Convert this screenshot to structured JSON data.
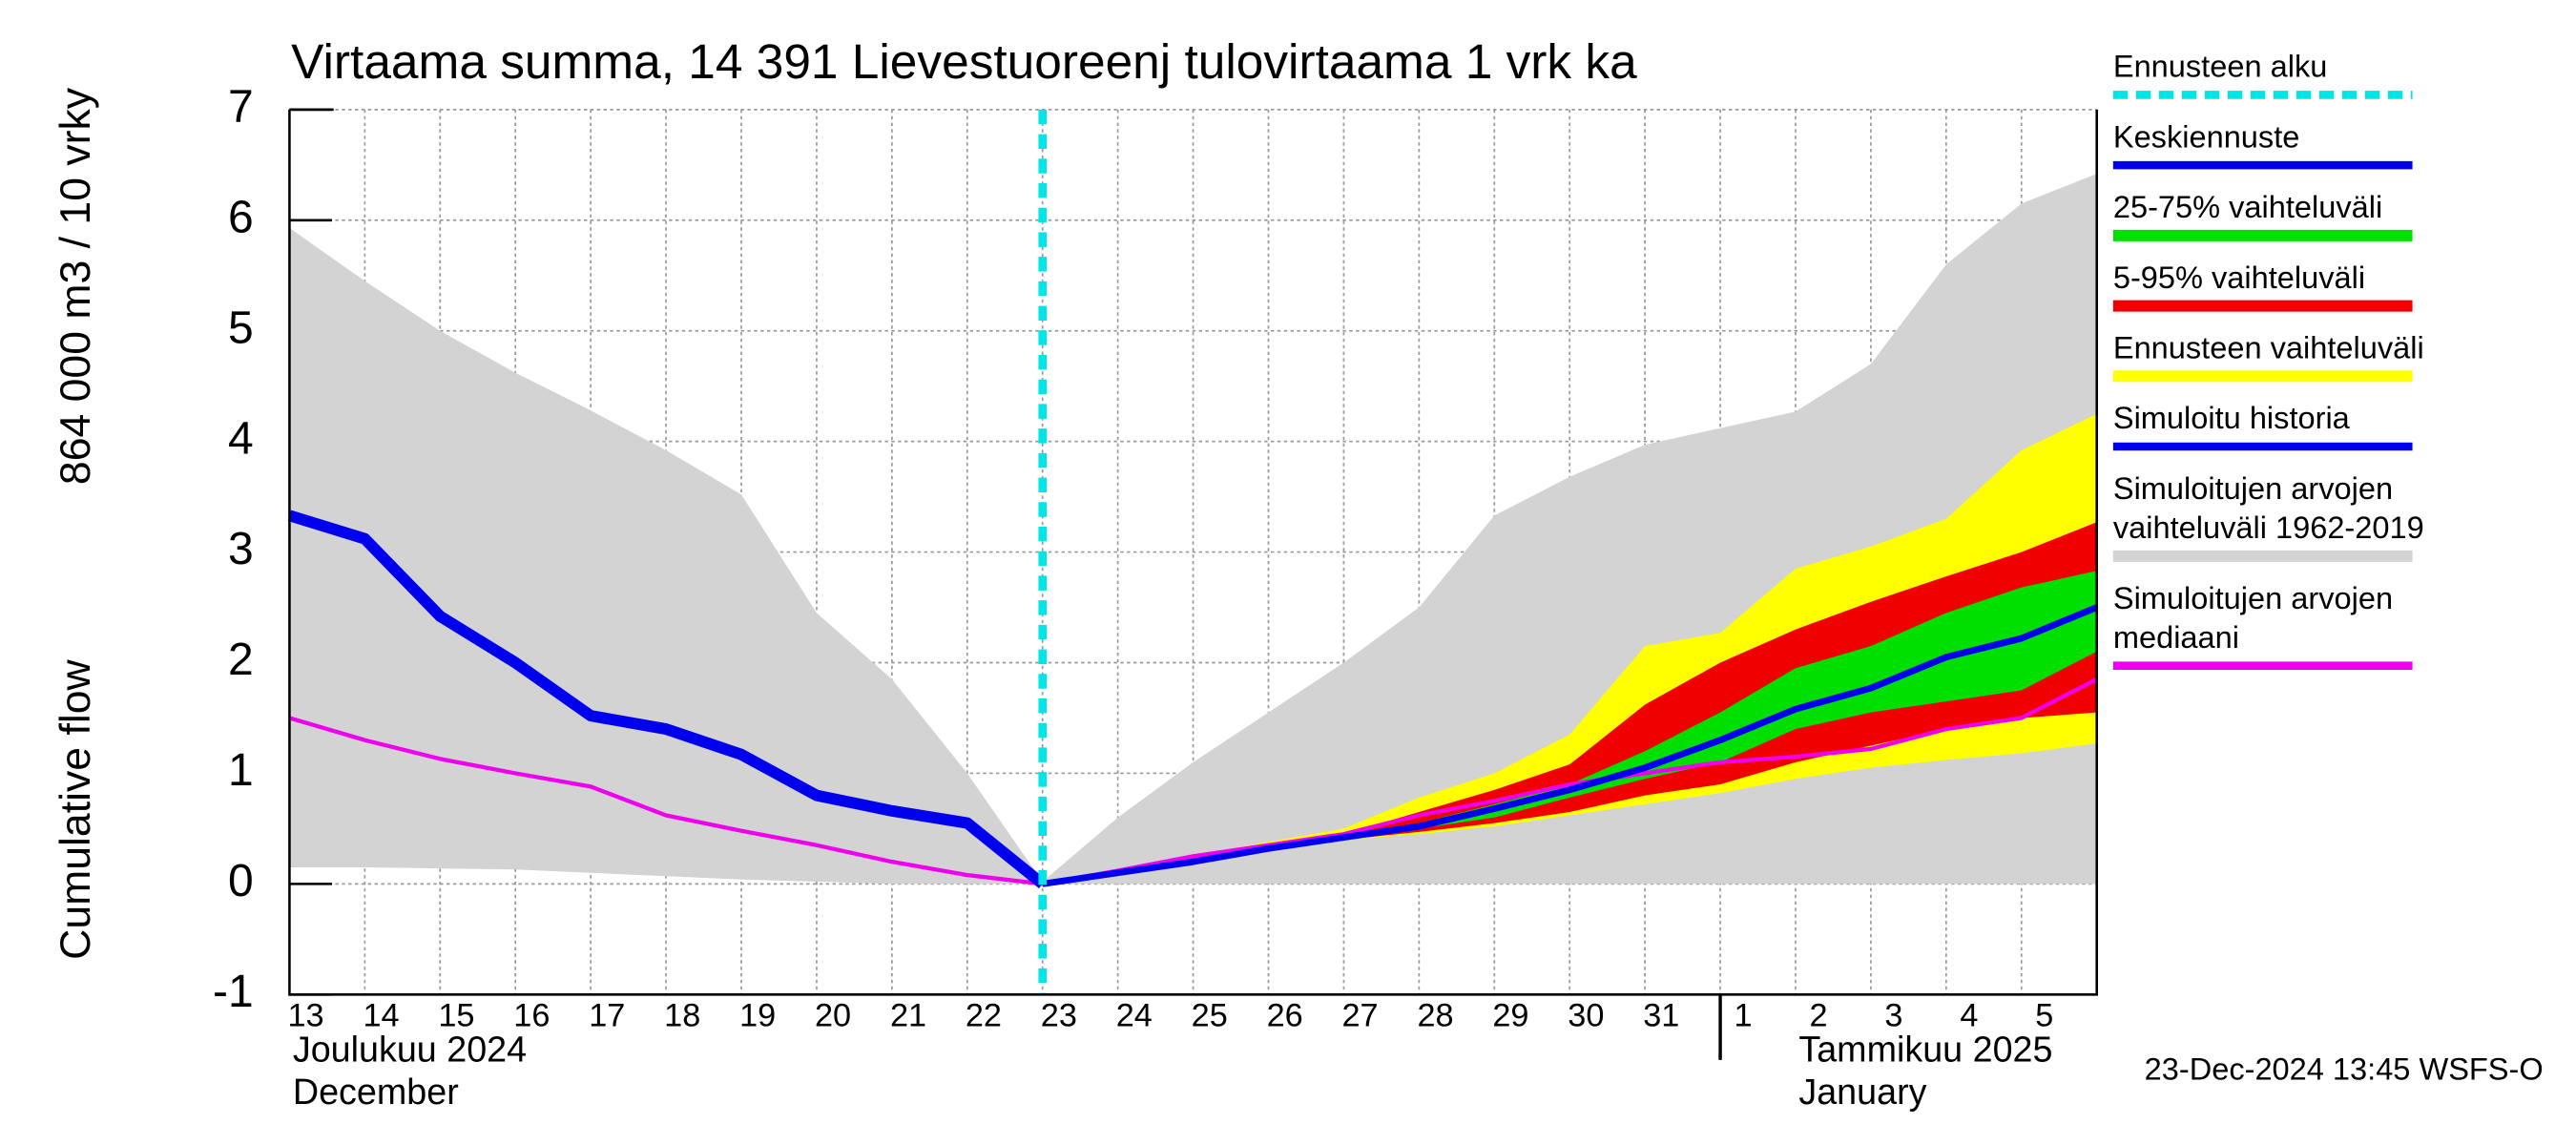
{
  "chart_data": {
    "type": "area-line",
    "title": "Virtaama summa, 14 391 Lievestuoreenj tulovirtaama 1 vrk ka",
    "ylabel": [
      "Cumulative flow",
      "864 000 m3 / 10 vrky"
    ],
    "footer": "23-Dec-2024 13:45 WSFS-O",
    "categories": [
      "13",
      "14",
      "15",
      "16",
      "17",
      "18",
      "19",
      "20",
      "21",
      "22",
      "23",
      "24",
      "25",
      "26",
      "27",
      "28",
      "29",
      "30",
      "31",
      "1",
      "2",
      "3",
      "4",
      "5",
      null
    ],
    "month_labels": [
      {
        "at": "13",
        "lines": [
          "Joulukuu  2024",
          "December"
        ]
      },
      {
        "at": "1",
        "lines": [
          "Tammikuu  2025",
          "January"
        ]
      }
    ],
    "ylim": [
      -1,
      7
    ],
    "yticks": [
      -1,
      0,
      1,
      2,
      3,
      4,
      5,
      6,
      7
    ],
    "grid": true,
    "forecast_start": {
      "name": "Ennusteen alku",
      "color": "#00e5e5",
      "at": "23"
    },
    "series": [
      {
        "name": [
          "Keskiennuste"
        ],
        "kind": "line",
        "width": 4,
        "color": "#0000ee",
        "values": [
          null,
          null,
          null,
          null,
          null,
          null,
          null,
          null,
          null,
          null,
          0.0,
          0.1,
          0.2,
          0.32,
          0.42,
          0.52,
          0.68,
          0.85,
          1.05,
          1.3,
          1.58,
          1.77,
          2.05,
          2.22,
          2.5
        ]
      },
      {
        "name": [
          "25-75% vaihteluväli"
        ],
        "kind": "band",
        "color": "#00e000",
        "upper": [
          null,
          null,
          null,
          null,
          null,
          null,
          null,
          null,
          null,
          null,
          0,
          0.11,
          0.22,
          0.34,
          0.43,
          0.55,
          0.72,
          0.9,
          1.2,
          1.55,
          1.95,
          2.15,
          2.45,
          2.68,
          2.83
        ],
        "lower": [
          null,
          null,
          null,
          null,
          null,
          null,
          null,
          null,
          null,
          null,
          0,
          0.1,
          0.2,
          0.31,
          0.41,
          0.5,
          0.6,
          0.78,
          0.95,
          1.1,
          1.4,
          1.55,
          1.65,
          1.75,
          2.1
        ]
      },
      {
        "name": [
          "5-95% vaihteluväli"
        ],
        "kind": "band",
        "color": "#f00000",
        "upper": [
          null,
          null,
          null,
          null,
          null,
          null,
          null,
          null,
          null,
          null,
          0,
          0.12,
          0.24,
          0.36,
          0.45,
          0.65,
          0.85,
          1.08,
          1.62,
          2.0,
          2.3,
          2.55,
          2.78,
          3.0,
          3.27
        ],
        "lower": [
          null,
          null,
          null,
          null,
          null,
          null,
          null,
          null,
          null,
          null,
          0,
          0.1,
          0.2,
          0.3,
          0.4,
          0.47,
          0.55,
          0.65,
          0.8,
          0.9,
          1.1,
          1.25,
          1.4,
          1.5,
          1.55
        ]
      },
      {
        "name": [
          "Ennusteen vaihteluväli"
        ],
        "kind": "band",
        "color": "#ffff00",
        "upper": [
          null,
          null,
          null,
          null,
          null,
          null,
          null,
          null,
          null,
          null,
          0,
          0.12,
          0.25,
          0.38,
          0.5,
          0.78,
          1.0,
          1.35,
          2.15,
          2.27,
          2.85,
          3.05,
          3.3,
          3.92,
          4.25
        ],
        "lower": [
          null,
          null,
          null,
          null,
          null,
          null,
          null,
          null,
          null,
          null,
          0,
          0.1,
          0.2,
          0.3,
          0.4,
          0.45,
          0.52,
          0.62,
          0.72,
          0.82,
          0.95,
          1.05,
          1.12,
          1.18,
          1.27
        ]
      },
      {
        "name": [
          "Simuloitu historia"
        ],
        "kind": "line",
        "width": 7,
        "color": "#0000ee",
        "values": [
          3.33,
          3.12,
          2.42,
          2.0,
          1.52,
          1.4,
          1.17,
          0.8,
          0.66,
          0.55,
          0.0,
          null,
          null,
          null,
          null,
          null,
          null,
          null,
          null,
          null,
          null,
          null,
          null,
          null,
          null
        ]
      },
      {
        "name": [
          "Simuloitujen arvojen",
          "vaihteluväli 1962-2019"
        ],
        "kind": "band",
        "color": "#d3d3d3",
        "upper": [
          5.93,
          5.45,
          5.0,
          4.62,
          4.28,
          3.92,
          3.52,
          2.45,
          1.85,
          1.0,
          0.02,
          0.6,
          1.1,
          1.55,
          2.0,
          2.5,
          3.33,
          3.68,
          3.97,
          4.12,
          4.27,
          4.7,
          5.6,
          6.15,
          6.42
        ],
        "lower": [
          0.15,
          0.15,
          0.14,
          0.13,
          0.1,
          0.07,
          0.04,
          0.02,
          0,
          0,
          0,
          0,
          0,
          0,
          0,
          0,
          0,
          0,
          0,
          0,
          0,
          0,
          0,
          0,
          0
        ]
      },
      {
        "name": [
          "Simuloitujen arvojen",
          "mediaani"
        ],
        "kind": "line",
        "width": 2.5,
        "color": "#ee00ee",
        "values": [
          1.5,
          1.3,
          1.13,
          1.0,
          0.88,
          0.62,
          0.48,
          0.35,
          0.2,
          0.08,
          0.0,
          0.12,
          0.25,
          0.35,
          0.45,
          0.62,
          0.75,
          0.9,
          1.0,
          1.1,
          1.15,
          1.22,
          1.4,
          1.5,
          1.85
        ]
      }
    ]
  }
}
